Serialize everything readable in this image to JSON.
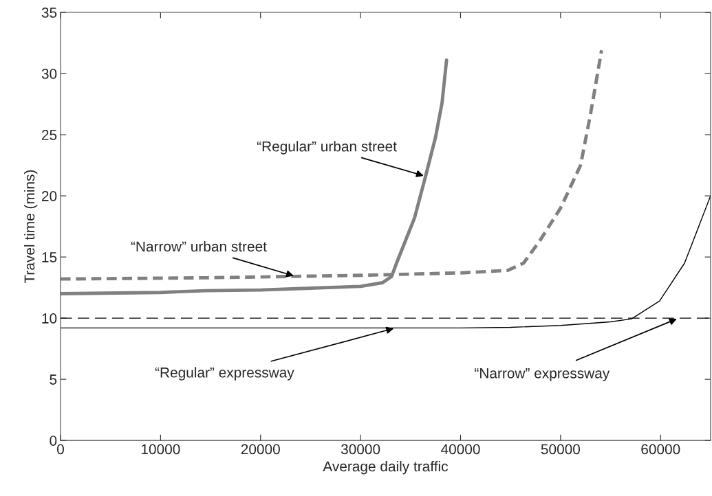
{
  "chart_data": {
    "type": "line",
    "xlabel": "Average daily traffic",
    "ylabel": "Travel time (mins)",
    "xlim": [
      0,
      65000
    ],
    "ylim": [
      0,
      35
    ],
    "xticks": [
      0,
      10000,
      20000,
      30000,
      40000,
      50000,
      60000
    ],
    "yticks": [
      0,
      5,
      10,
      15,
      20,
      25,
      30,
      35
    ],
    "grid": false,
    "legend": false,
    "series": [
      {
        "name": "“Regular” urban street",
        "color": "#808080",
        "line_style": "solid",
        "x": [
          0,
          10000,
          14500,
          20000,
          25000,
          30000,
          32200,
          33100,
          33600,
          35400,
          36500,
          37500,
          38150,
          38600
        ],
        "values": [
          12.0,
          12.1,
          12.25,
          12.3,
          12.45,
          12.6,
          12.9,
          13.4,
          14.5,
          18.2,
          21.6,
          24.8,
          27.6,
          31.1
        ]
      },
      {
        "name": "“Narrow” urban street",
        "color": "#808080",
        "line_style": "dashed",
        "x": [
          0,
          14500,
          30000,
          40000,
          44700,
          46300,
          47900,
          50000,
          52000,
          53000,
          54100
        ],
        "values": [
          13.2,
          13.3,
          13.5,
          13.7,
          13.9,
          14.5,
          16.3,
          19.0,
          22.5,
          26.7,
          31.9
        ]
      },
      {
        "name": "“Regular” expressway",
        "color": "#000000",
        "line_style": "solid",
        "x": [
          0,
          20000,
          40000,
          45000,
          50000,
          55000,
          57100,
          59900,
          62400,
          65000
        ],
        "values": [
          9.2,
          9.2,
          9.2,
          9.25,
          9.4,
          9.7,
          9.94,
          11.4,
          14.5,
          20.0
        ]
      },
      {
        "name": "“Narrow” expressway",
        "color": "#000000",
        "line_style": "dashed",
        "x": [
          0,
          65000
        ],
        "values": [
          10,
          10
        ]
      }
    ]
  }
}
